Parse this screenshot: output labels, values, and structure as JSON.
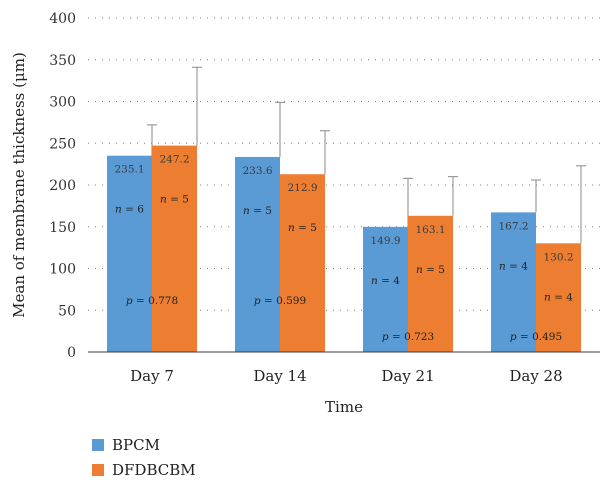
{
  "chart_data": {
    "type": "bar",
    "ylabel": "Mean of membrane thickness (μm)",
    "xlabel": "Time",
    "ylim": [
      0,
      400
    ],
    "yticks": [
      0,
      50,
      100,
      150,
      200,
      250,
      300,
      350,
      400
    ],
    "categories": [
      "Day 7",
      "Day 14",
      "Day 21",
      "Day 28"
    ],
    "grid": true,
    "legend_position": "bottom-left",
    "series": [
      {
        "name": "BPCM",
        "color": "#5b9bd5",
        "values": [
          235.1,
          233.6,
          149.9,
          167.2
        ],
        "value_labels": [
          "235.1",
          "233.6",
          "149.9",
          "167.2"
        ],
        "error_top": [
          272,
          299,
          208,
          206
        ],
        "n_labels": [
          "n = 6",
          "n = 5",
          "n = 4",
          "n = 4"
        ]
      },
      {
        "name": "DFDBCBM",
        "color": "#ed7d31",
        "values": [
          247.2,
          212.9,
          163.1,
          130.2
        ],
        "value_labels": [
          "247.2",
          "212.9",
          "163.1",
          "130.2"
        ],
        "error_top": [
          341,
          265,
          210,
          223
        ],
        "n_labels": [
          "n = 5",
          "n = 5",
          "n = 5",
          "n = 4"
        ]
      }
    ],
    "p_values": [
      "p = 0.778",
      "p = 0.599",
      "p = 0.723",
      "p = 0.495"
    ]
  }
}
